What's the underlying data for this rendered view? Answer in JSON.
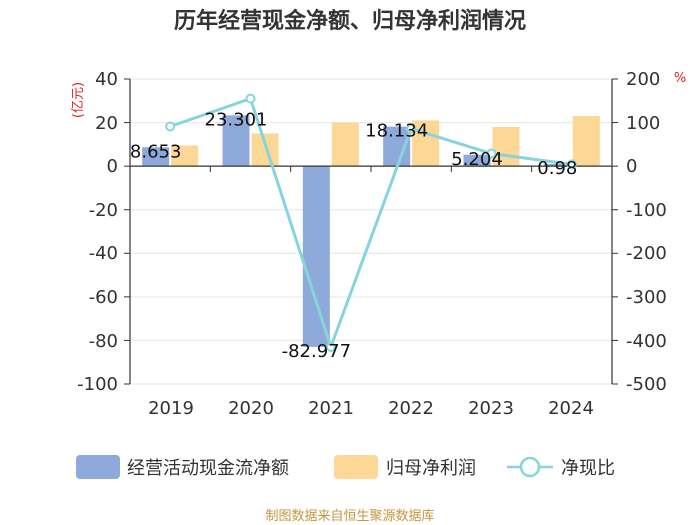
{
  "chart_data": {
    "type": "bar",
    "title": "历年经营现金净额、归母净利润情况",
    "categories": [
      "2019",
      "2020",
      "2021",
      "2022",
      "2023",
      "2024"
    ],
    "series": [
      {
        "name": "经营活动现金流净额",
        "type": "bar",
        "axis": "left",
        "color": "#8eaadb",
        "values": [
          8.653,
          23.301,
          -82.977,
          18.134,
          5.204,
          0.98
        ],
        "labels": [
          "8.653",
          "23.301",
          "-82.977",
          "18.134",
          "5.204",
          "0.98"
        ]
      },
      {
        "name": "归母净利润",
        "type": "bar",
        "axis": "left",
        "color": "#fdd796",
        "values": [
          9.5,
          15.0,
          20.0,
          21.0,
          18.0,
          23.0
        ]
      },
      {
        "name": "净现比",
        "type": "line",
        "axis": "right",
        "color": "#86d4dc",
        "values": [
          91,
          155,
          -415,
          86,
          29,
          4
        ]
      }
    ],
    "left_axis": {
      "unit": "(亿元)",
      "min": -100,
      "max": 40,
      "ticks": [
        "40",
        "20",
        "0",
        "-20",
        "-40",
        "-60",
        "-80",
        "-100"
      ]
    },
    "right_axis": {
      "unit": "%",
      "min": -500,
      "max": 200,
      "ticks": [
        "200",
        "100",
        "0",
        "-100",
        "-200",
        "-300",
        "-400",
        "-500"
      ]
    },
    "grid": true,
    "legend_position": "bottom",
    "source": "制图数据来自恒生聚源数据库"
  }
}
